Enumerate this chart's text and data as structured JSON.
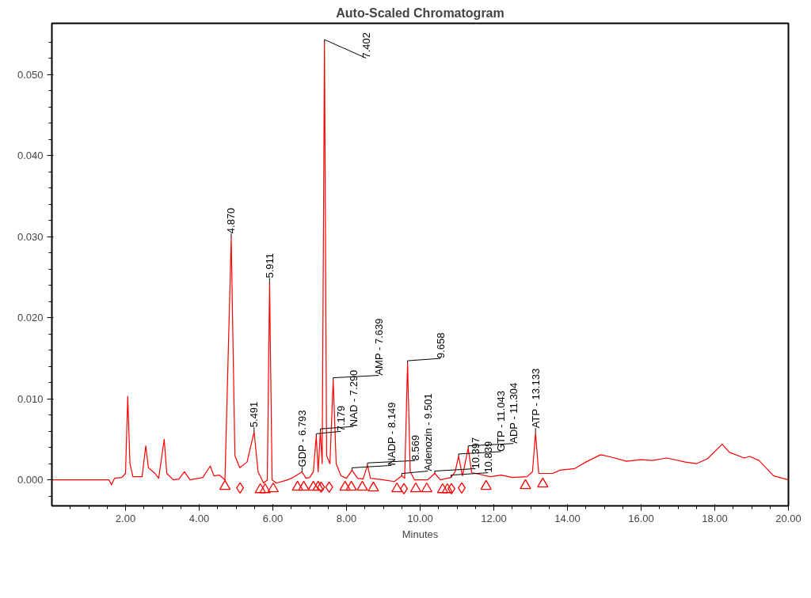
{
  "chart_data": {
    "type": "line",
    "title": "Auto-Scaled Chromatogram",
    "xlabel": "Minutes",
    "xlim": [
      0,
      20
    ],
    "ylim": [
      -0.0032,
      0.0563
    ],
    "xticks": [
      {
        "value": 0.5,
        "label": null
      },
      {
        "value": 1,
        "label": null
      },
      {
        "value": 1.5,
        "label": null
      },
      {
        "value": 2,
        "label": "2.00"
      },
      {
        "value": 2.5,
        "label": null
      },
      {
        "value": 3,
        "label": null
      },
      {
        "value": 3.5,
        "label": null
      },
      {
        "value": 4,
        "label": "4.00"
      },
      {
        "value": 4.5,
        "label": null
      },
      {
        "value": 5,
        "label": null
      },
      {
        "value": 5.5,
        "label": null
      },
      {
        "value": 6,
        "label": "6.00"
      },
      {
        "value": 6.5,
        "label": null
      },
      {
        "value": 7,
        "label": null
      },
      {
        "value": 7.5,
        "label": null
      },
      {
        "value": 8,
        "label": "8.00"
      },
      {
        "value": 8.5,
        "label": null
      },
      {
        "value": 9,
        "label": null
      },
      {
        "value": 9.5,
        "label": null
      },
      {
        "value": 10,
        "label": "10.00"
      },
      {
        "value": 10.5,
        "label": null
      },
      {
        "value": 11,
        "label": null
      },
      {
        "value": 11.5,
        "label": null
      },
      {
        "value": 12,
        "label": "12.00"
      },
      {
        "value": 12.5,
        "label": null
      },
      {
        "value": 13,
        "label": null
      },
      {
        "value": 13.5,
        "label": null
      },
      {
        "value": 14,
        "label": "14.00"
      },
      {
        "value": 14.5,
        "label": null
      },
      {
        "value": 15,
        "label": null
      },
      {
        "value": 15.5,
        "label": null
      },
      {
        "value": 16,
        "label": "16.00"
      },
      {
        "value": 16.5,
        "label": null
      },
      {
        "value": 17,
        "label": null
      },
      {
        "value": 17.5,
        "label": null
      },
      {
        "value": 18,
        "label": "18.00"
      },
      {
        "value": 18.5,
        "label": null
      },
      {
        "value": 19,
        "label": null
      },
      {
        "value": 19.5,
        "label": null
      },
      {
        "value": 20,
        "label": "20.00"
      }
    ],
    "yticks": [
      {
        "value": -0.002,
        "label": null
      },
      {
        "value": 0,
        "label": "0.000"
      },
      {
        "value": 0.002,
        "label": null
      },
      {
        "value": 0.004,
        "label": null
      },
      {
        "value": 0.006,
        "label": null
      },
      {
        "value": 0.008,
        "label": null
      },
      {
        "value": 0.01,
        "label": "0.010"
      },
      {
        "value": 0.012,
        "label": null
      },
      {
        "value": 0.014,
        "label": null
      },
      {
        "value": 0.016,
        "label": null
      },
      {
        "value": 0.018,
        "label": null
      },
      {
        "value": 0.02,
        "label": "0.020"
      },
      {
        "value": 0.022,
        "label": null
      },
      {
        "value": 0.024,
        "label": null
      },
      {
        "value": 0.026,
        "label": null
      },
      {
        "value": 0.028,
        "label": null
      },
      {
        "value": 0.03,
        "label": "0.030"
      },
      {
        "value": 0.032,
        "label": null
      },
      {
        "value": 0.034,
        "label": null
      },
      {
        "value": 0.036,
        "label": null
      },
      {
        "value": 0.038,
        "label": null
      },
      {
        "value": 0.04,
        "label": "0.040"
      },
      {
        "value": 0.042,
        "label": null
      },
      {
        "value": 0.044,
        "label": null
      },
      {
        "value": 0.046,
        "label": null
      },
      {
        "value": 0.048,
        "label": null
      },
      {
        "value": 0.05,
        "label": "0.050"
      },
      {
        "value": 0.052,
        "label": null
      },
      {
        "value": 0.054,
        "label": null
      }
    ],
    "series": [
      {
        "color": "#ff0000",
        "x": [
          0,
          1.55,
          1.62,
          1.7,
          1.9,
          2.0,
          2.06,
          2.12,
          2.2,
          2.45,
          2.55,
          2.62,
          2.8,
          2.9,
          3.05,
          3.12,
          3.3,
          3.45,
          3.6,
          3.75,
          4.1,
          4.3,
          4.4,
          4.55,
          4.7,
          4.87,
          4.97,
          5.1,
          5.3,
          5.491,
          5.6,
          5.75,
          5.85,
          5.911,
          5.98,
          6.1,
          6.4,
          6.55,
          6.793,
          6.9,
          7.0,
          7.1,
          7.179,
          7.23,
          7.29,
          7.34,
          7.402,
          7.46,
          7.55,
          7.639,
          7.72,
          7.85,
          8.0,
          8.149,
          8.3,
          8.45,
          8.569,
          8.65,
          9.0,
          9.3,
          9.501,
          9.58,
          9.658,
          9.73,
          9.85,
          10.2,
          10.397,
          10.55,
          10.839,
          10.95,
          11.043,
          11.15,
          11.304,
          11.4,
          11.6,
          11.9,
          12.2,
          12.5,
          12.9,
          13.05,
          13.133,
          13.22,
          13.6,
          13.8,
          14.2,
          14.5,
          14.9,
          15.2,
          15.6,
          16.0,
          16.3,
          16.7,
          17.2,
          17.5,
          17.8,
          18.2,
          18.4,
          18.8,
          18.95,
          19.2,
          19.6,
          20.0
        ],
        "values": [
          0,
          0,
          -0.0006,
          0.0002,
          0.0003,
          0.0008,
          0.0103,
          0.002,
          0.0004,
          0.0004,
          0.0042,
          0.0015,
          0.0008,
          0.0002,
          0.005,
          0.0008,
          0,
          0.0001,
          0.001,
          0,
          0.0003,
          0.0017,
          0.0005,
          0.0006,
          0,
          0.0298,
          0.003,
          0.0015,
          0.0022,
          0.0059,
          0.001,
          -0.0004,
          0,
          0.0243,
          0,
          -0.0004,
          0,
          0.0003,
          0.001,
          0.0002,
          0.0003,
          0.001,
          0.0054,
          0.001,
          0.006,
          0.002,
          0.054,
          0.003,
          0.002,
          0.0123,
          0.002,
          0.0005,
          0.0002,
          0.0012,
          0.0002,
          0.0001,
          0.0018,
          0.0002,
          0,
          -0.0002,
          0.0005,
          0.0002,
          0.0144,
          0.001,
          0,
          0,
          0.0008,
          0,
          0.0003,
          0.001,
          0.0029,
          0.0005,
          0.0039,
          0.0009,
          0.0007,
          0.0004,
          0.0006,
          0.0003,
          0.0004,
          0.001,
          0.0058,
          0.0008,
          0.0008,
          0.0012,
          0.0014,
          0.0022,
          0.0031,
          0.0028,
          0.0023,
          0.0025,
          0.0024,
          0.0027,
          0.0022,
          0.002,
          0.0026,
          0.0044,
          0.0034,
          0.0027,
          0.0029,
          0.0024,
          0.0005,
          0
        ]
      },
      {
        "type": "scatter",
        "marker": "triangle",
        "color": "#ff0000",
        "x": [
          4.7,
          5.66,
          5.79,
          6.01,
          6.67,
          6.84,
          7.1,
          7.23,
          7.96,
          8.13,
          8.43,
          8.73,
          9.37,
          9.88,
          10.18,
          10.61,
          10.74,
          11.79,
          12.86,
          13.33
        ],
        "values": [
          -0.0008,
          -0.0012,
          -0.0012,
          -0.0011,
          -0.0009,
          -0.0009,
          -0.0009,
          -0.0009,
          -0.0009,
          -0.0009,
          -0.0009,
          -0.001,
          -0.0011,
          -0.0011,
          -0.0011,
          -0.0012,
          -0.0012,
          -0.0008,
          -0.0007,
          -0.0005
        ]
      },
      {
        "type": "scatter",
        "marker": "diamond",
        "color": "#ff0000",
        "x": [
          5.11,
          7.31,
          7.53,
          9.56,
          10.85,
          11.13
        ],
        "values": [
          -0.001,
          -0.0009,
          -0.0009,
          -0.0011,
          -0.0011,
          -0.001
        ]
      }
    ],
    "annotations": [
      {
        "text": "4.870",
        "x": 4.87,
        "y": 0.0298
      },
      {
        "text": "5.491",
        "x": 5.491,
        "y": 0.0059
      },
      {
        "text": "5.911",
        "x": 5.911,
        "y": 0.0243
      },
      {
        "text": "GDP - 6.793",
        "x": 6.793,
        "y": 0.001
      },
      {
        "text": "7.179",
        "x": 7.179,
        "y": 0.0054
      },
      {
        "text": "NAD - 7.290",
        "x": 7.29,
        "y": 0.006
      },
      {
        "text": "7.402",
        "x": 7.402,
        "y": 0.054
      },
      {
        "text": "AMP - 7.639",
        "x": 7.639,
        "y": 0.0123
      },
      {
        "text": "NADP - 8.149",
        "x": 8.149,
        "y": 0.0012
      },
      {
        "text": "8.569",
        "x": 8.569,
        "y": 0.0018
      },
      {
        "text": "Adenozin - 9.501",
        "x": 9.501,
        "y": 0.0005
      },
      {
        "text": "9.658",
        "x": 9.658,
        "y": 0.0144
      },
      {
        "text": "10.397",
        "x": 10.397,
        "y": 0.0008
      },
      {
        "text": "10.839",
        "x": 10.839,
        "y": 0.0003
      },
      {
        "text": "GTP - 11.043",
        "x": 11.043,
        "y": 0.0029
      },
      {
        "text": "ADP - 11.304",
        "x": 11.304,
        "y": 0.0039
      },
      {
        "text": "ATP - 13.133",
        "x": 13.133,
        "y": 0.0058
      }
    ]
  }
}
